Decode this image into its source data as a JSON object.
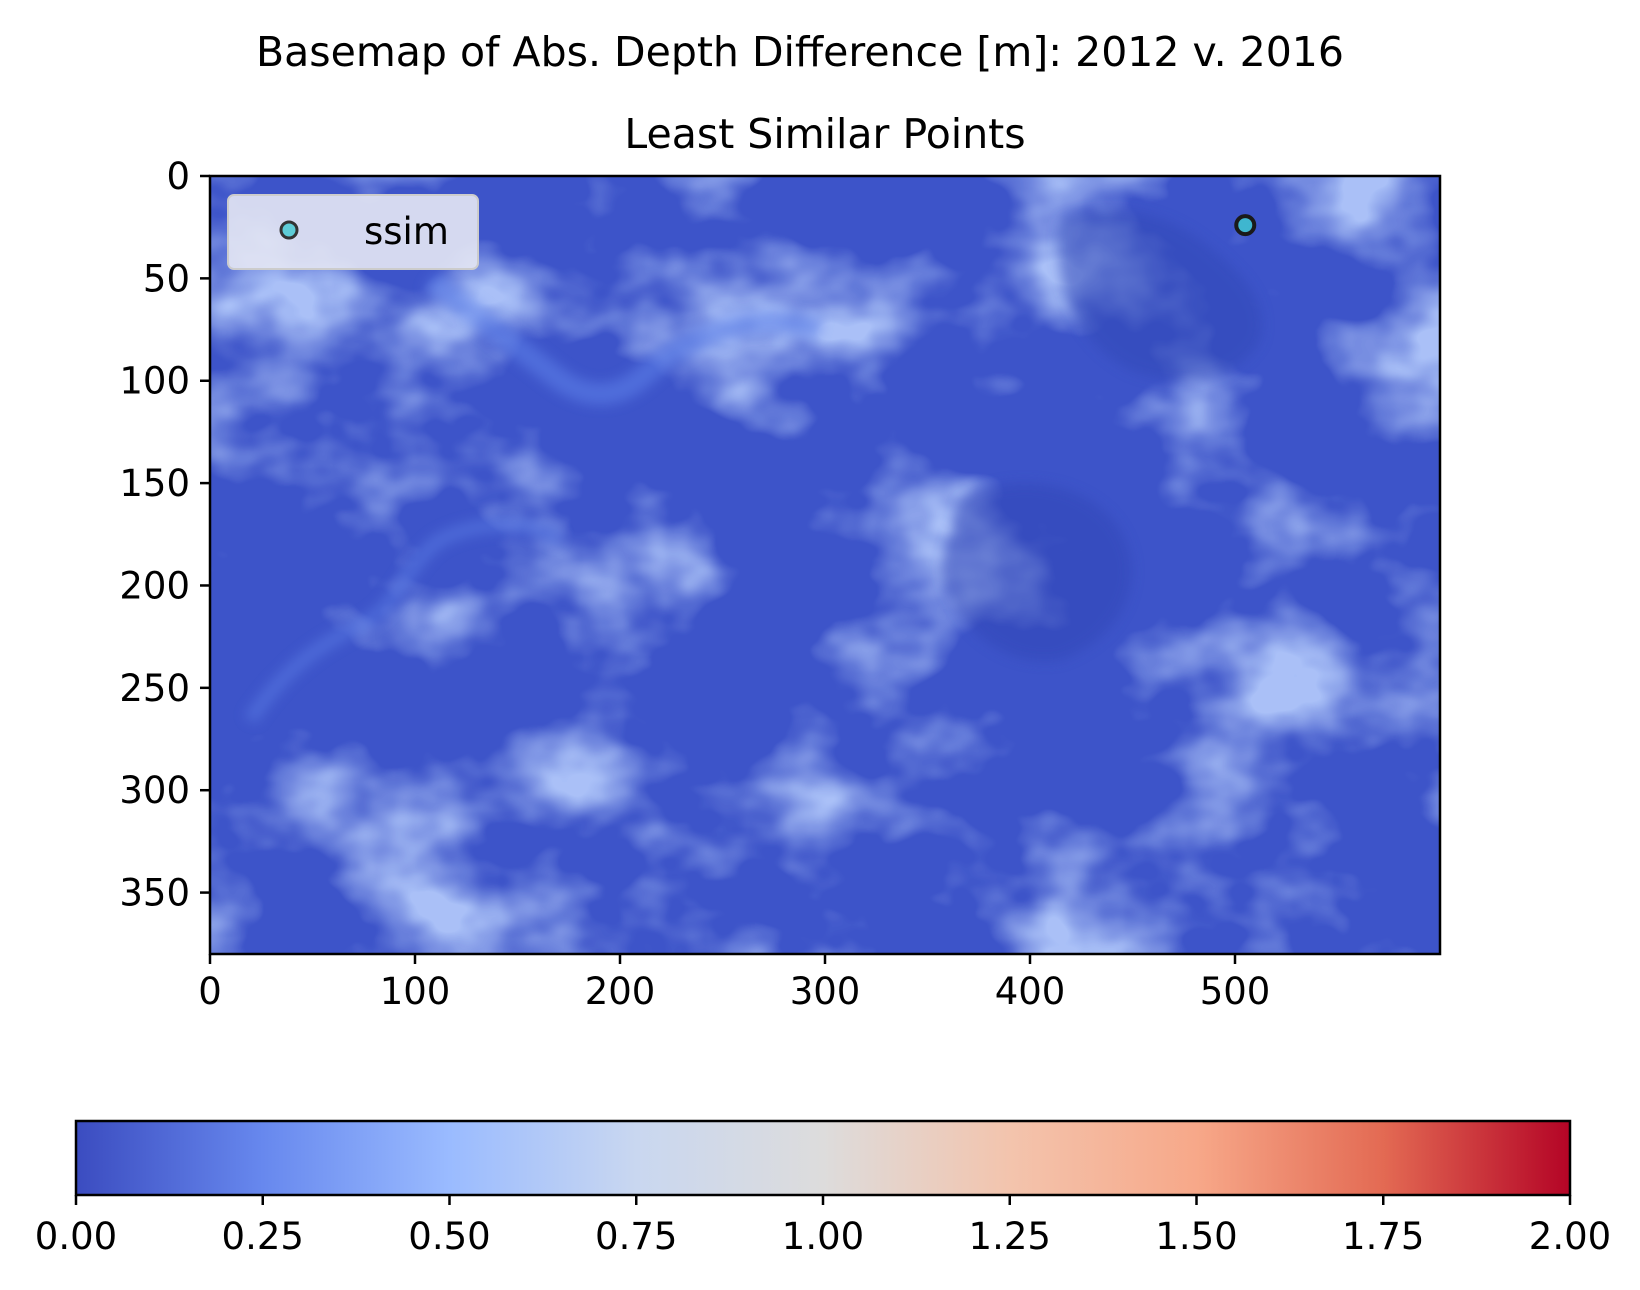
{
  "chart_data": {
    "type": "heatmap",
    "title": "Basemap of Abs. Depth Difference [m]: 2012 v. 2016",
    "subtitle": "Least Similar Points",
    "xlim": [
      0,
      600
    ],
    "ylim": [
      380,
      0
    ],
    "x_ticks": [
      0,
      100,
      200,
      300,
      400,
      500
    ],
    "y_ticks": [
      0,
      50,
      100,
      150,
      200,
      250,
      300,
      350
    ],
    "grid": false,
    "legend": {
      "placement": "upper-left",
      "entries": [
        {
          "label": "ssim",
          "marker": "circle",
          "color": "#40c8d0"
        }
      ]
    },
    "points": {
      "name": "ssim",
      "x": [
        505
      ],
      "y": [
        24
      ],
      "color": "#40c8d0"
    },
    "colorbar": {
      "colormap": "coolwarm",
      "orientation": "horizontal",
      "range": [
        0,
        2
      ],
      "ticks": [
        "0.00",
        "0.25",
        "0.50",
        "0.75",
        "1.00",
        "1.25",
        "1.50",
        "1.75",
        "2.00"
      ],
      "stops": [
        "#3b4cc0",
        "#6788ee",
        "#9abbff",
        "#c9d7f0",
        "#dddcdc",
        "#f3c4ad",
        "#f7a889",
        "#e36a53",
        "#b40426"
      ]
    },
    "heatmap_base_color": "#3d54c9",
    "heatmap_value_range_approx": [
      0.0,
      0.3
    ]
  }
}
